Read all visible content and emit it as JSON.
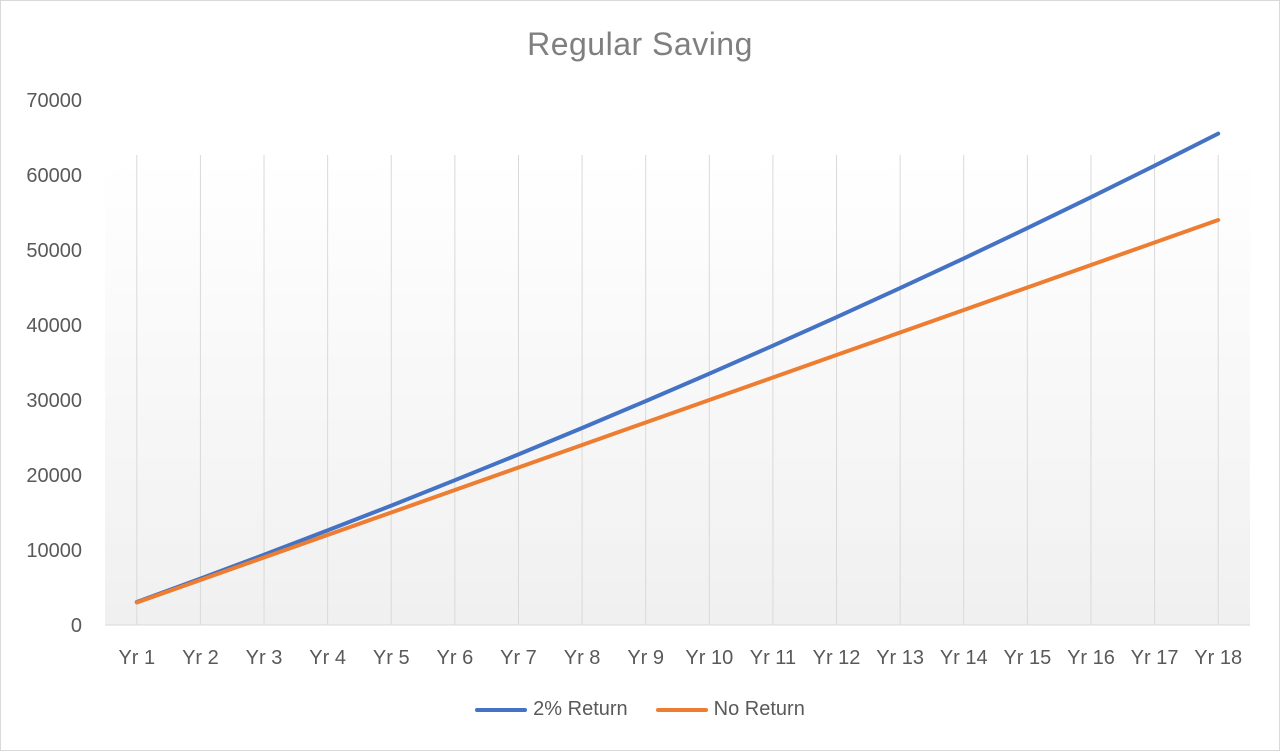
{
  "chart_data": {
    "type": "line",
    "title": "Regular Saving",
    "xlabel": "",
    "ylabel": "",
    "categories": [
      "Yr 1",
      "Yr 2",
      "Yr 3",
      "Yr 4",
      "Yr 5",
      "Yr 6",
      "Yr 7",
      "Yr 8",
      "Yr 9",
      "Yr 10",
      "Yr 11",
      "Yr 12",
      "Yr 13",
      "Yr 14",
      "Yr 15",
      "Yr 16",
      "Yr 17",
      "Yr 18"
    ],
    "ylim": [
      0,
      70000
    ],
    "yticks": [
      "0",
      "10000",
      "20000",
      "30000",
      "40000",
      "50000",
      "60000",
      "70000"
    ],
    "grid": "vertical",
    "legend_position": "bottom",
    "series": [
      {
        "name": "2% Return",
        "color": "#4472c4",
        "values": [
          3060,
          6181,
          9365,
          12612,
          15924,
          19303,
          22749,
          26264,
          29849,
          33506,
          37236,
          41041,
          44922,
          48881,
          52918,
          57037,
          61237,
          65522
        ]
      },
      {
        "name": "No Return",
        "color": "#ed7d31",
        "values": [
          3000,
          6000,
          9000,
          12000,
          15000,
          18000,
          21000,
          24000,
          27000,
          30000,
          33000,
          36000,
          39000,
          42000,
          45000,
          48000,
          51000,
          54000
        ]
      }
    ]
  }
}
